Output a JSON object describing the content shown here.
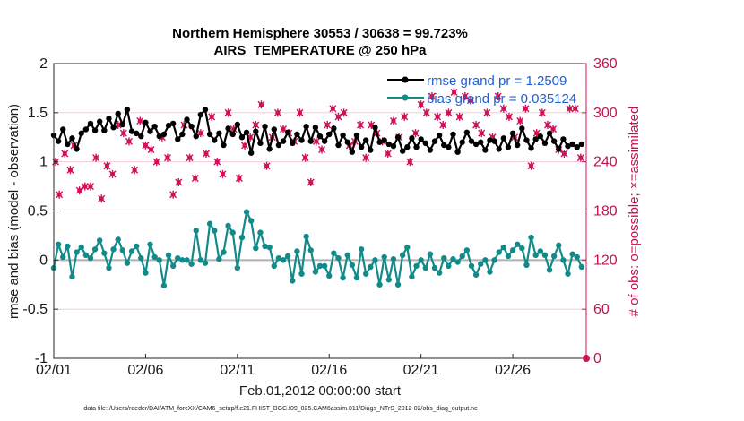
{
  "chart_data": {
    "type": "line",
    "title_line1": "Northern Hemisphere 30553 / 30638 = 99.723%",
    "title_line2": "AIRS_TEMPERATURE @ 250 hPa",
    "xlabel": "Feb.01,2012 00:00:00 start",
    "ylabel_left": "rmse and bias (model - observation)",
    "ylabel_right": "# of obs: o=possible; ×=assimilated",
    "footer": "data file: /Users/raeder/DAI/ATM_forcXX/CAM6_setup/f.e21.FHIST_BGC.f09_025.CAM6assim.011/Diags_NTrS_2012-02/obs_diag_output.nc",
    "x_tick_labels": [
      "02/01",
      "02/06",
      "02/11",
      "02/16",
      "02/21",
      "02/26"
    ],
    "x_tick_days": [
      1,
      6,
      11,
      16,
      21,
      26
    ],
    "xlim": [
      1,
      30
    ],
    "ylim_left": [
      -1,
      2
    ],
    "yticks_left": [
      "-1",
      "-0.5",
      "0",
      "0.5",
      "1",
      "1.5",
      "2"
    ],
    "yticks_left_values": [
      -1,
      -0.5,
      0,
      0.5,
      1,
      1.5,
      2
    ],
    "ylim_right": [
      0,
      360
    ],
    "yticks_right": [
      "0",
      "60",
      "120",
      "180",
      "240",
      "300",
      "360"
    ],
    "yticks_right_values": [
      0,
      60,
      120,
      180,
      240,
      300,
      360
    ],
    "legend": [
      {
        "name": "rmse grand pr = 1.2509",
        "color": "#000000"
      },
      {
        "name": "bias grand pr = 0.035124",
        "color": "#138a8a"
      }
    ],
    "colors": {
      "rmse": "#000000",
      "bias": "#138a8a",
      "obs": "#d0105a",
      "zero": "#b0b0b0",
      "grid": "#f2c4d4"
    },
    "x": [
      1.0,
      1.25,
      1.5,
      1.75,
      2.0,
      2.25,
      2.5,
      2.75,
      3.0,
      3.25,
      3.5,
      3.75,
      4.0,
      4.25,
      4.5,
      4.75,
      5.0,
      5.25,
      5.5,
      5.75,
      6.0,
      6.25,
      6.5,
      6.75,
      7.0,
      7.25,
      7.5,
      7.75,
      8.0,
      8.25,
      8.5,
      8.75,
      9.0,
      9.25,
      9.5,
      9.75,
      10.0,
      10.25,
      10.5,
      10.75,
      11.0,
      11.25,
      11.5,
      11.75,
      12.0,
      12.25,
      12.5,
      12.75,
      13.0,
      13.25,
      13.5,
      13.75,
      14.0,
      14.25,
      14.5,
      14.75,
      15.0,
      15.25,
      15.5,
      15.75,
      16.0,
      16.25,
      16.5,
      16.75,
      17.0,
      17.25,
      17.5,
      17.75,
      18.0,
      18.25,
      18.5,
      18.75,
      19.0,
      19.25,
      19.5,
      19.75,
      20.0,
      20.25,
      20.5,
      20.75,
      21.0,
      21.25,
      21.5,
      21.75,
      22.0,
      22.25,
      22.5,
      22.75,
      23.0,
      23.25,
      23.5,
      23.75,
      24.0,
      24.25,
      24.5,
      24.75,
      25.0,
      25.25,
      25.5,
      25.75,
      26.0,
      26.25,
      26.5,
      26.75,
      27.0,
      27.25,
      27.5,
      27.75,
      28.0,
      28.25,
      28.5,
      28.75,
      29.0,
      29.25,
      29.5,
      29.75
    ],
    "series": [
      {
        "name": "rmse",
        "values": [
          1.27,
          1.21,
          1.33,
          1.18,
          1.24,
          1.13,
          1.29,
          1.33,
          1.39,
          1.32,
          1.41,
          1.32,
          1.44,
          1.35,
          1.49,
          1.38,
          1.53,
          1.31,
          1.29,
          1.26,
          1.4,
          1.31,
          1.36,
          1.26,
          1.28,
          1.37,
          1.39,
          1.23,
          1.28,
          1.43,
          1.36,
          1.26,
          1.48,
          1.53,
          1.28,
          1.22,
          1.29,
          1.17,
          1.34,
          1.28,
          1.38,
          1.25,
          1.3,
          1.09,
          1.31,
          1.19,
          1.36,
          1.13,
          1.33,
          1.17,
          1.21,
          1.3,
          1.19,
          1.28,
          1.22,
          1.36,
          1.21,
          1.35,
          1.26,
          1.21,
          1.28,
          1.34,
          1.17,
          1.27,
          1.2,
          1.1,
          1.27,
          1.15,
          1.22,
          1.12,
          1.35,
          1.2,
          1.22,
          1.18,
          1.16,
          1.25,
          1.11,
          1.15,
          1.24,
          1.15,
          1.23,
          1.19,
          1.12,
          1.21,
          1.27,
          1.17,
          1.15,
          1.28,
          1.1,
          1.2,
          1.3,
          1.21,
          1.18,
          1.2,
          1.12,
          1.22,
          1.21,
          1.13,
          1.24,
          1.15,
          1.29,
          1.17,
          1.34,
          1.22,
          1.14,
          1.23,
          1.26,
          1.19,
          1.29,
          1.21,
          1.13,
          1.23,
          1.16,
          1.18,
          1.15,
          1.18
        ]
      },
      {
        "name": "bias",
        "values": [
          -0.08,
          0.16,
          0.03,
          0.14,
          -0.17,
          0.08,
          0.13,
          0.05,
          0.02,
          0.11,
          0.2,
          0.07,
          -0.08,
          0.11,
          0.21,
          0.1,
          -0.03,
          0.09,
          0.14,
          0.02,
          -0.13,
          0.16,
          0.03,
          0.0,
          -0.26,
          0.05,
          -0.06,
          0.02,
          0.0,
          0.0,
          -0.04,
          0.3,
          0.0,
          -0.03,
          0.37,
          0.3,
          0.01,
          0.08,
          0.35,
          0.28,
          -0.08,
          0.23,
          0.49,
          0.4,
          0.12,
          0.28,
          0.14,
          0.13,
          -0.06,
          0.02,
          0.0,
          0.04,
          -0.21,
          0.09,
          -0.14,
          0.24,
          0.1,
          -0.12,
          -0.06,
          -0.06,
          -0.16,
          0.07,
          0.02,
          -0.18,
          0.05,
          -0.05,
          -0.18,
          0.11,
          -0.14,
          -0.07,
          0.0,
          -0.25,
          0.03,
          -0.2,
          0.01,
          -0.25,
          0.05,
          0.13,
          -0.17,
          -0.06,
          0.0,
          -0.08,
          0.06,
          -0.08,
          -0.13,
          0.02,
          -0.06,
          0.01,
          -0.02,
          0.04,
          0.1,
          -0.06,
          -0.15,
          -0.04,
          0.0,
          -0.12,
          0.0,
          0.08,
          0.13,
          0.04,
          0.1,
          0.16,
          0.12,
          -0.05,
          0.23,
          0.05,
          0.09,
          0.05,
          -0.1,
          0.04,
          0.15,
          0.0,
          -0.14,
          0.06,
          0.03,
          -0.07
        ]
      }
    ],
    "obs_assimilated": {
      "x": [
        1.1,
        1.3,
        1.6,
        1.9,
        2.1,
        2.4,
        2.7,
        3.0,
        3.3,
        3.6,
        3.9,
        4.2,
        4.5,
        4.8,
        5.1,
        5.4,
        5.7,
        6.0,
        6.3,
        6.6,
        6.9,
        7.2,
        7.5,
        7.8,
        8.1,
        8.4,
        8.7,
        9.0,
        9.3,
        9.6,
        9.9,
        10.2,
        10.5,
        10.8,
        11.1,
        11.4,
        11.7,
        12.0,
        12.3,
        12.6,
        12.9,
        13.2,
        13.5,
        13.8,
        14.1,
        14.4,
        14.7,
        15.0,
        15.3,
        15.6,
        15.9,
        16.2,
        16.5,
        16.8,
        17.1,
        17.4,
        17.7,
        18.0,
        18.3,
        18.6,
        18.9,
        19.2,
        19.5,
        19.8,
        20.1,
        20.4,
        20.7,
        21.0,
        21.3,
        21.6,
        21.9,
        22.2,
        22.5,
        22.8,
        23.1,
        23.4,
        23.7,
        24.0,
        24.3,
        24.6,
        24.9,
        25.2,
        25.5,
        25.8,
        26.1,
        26.4,
        26.7,
        27.0,
        27.3,
        27.6,
        27.9,
        28.2,
        28.5,
        28.8,
        29.1,
        29.4,
        29.7
      ],
      "y": [
        240,
        200,
        250,
        230,
        260,
        205,
        210,
        210,
        245,
        195,
        235,
        225,
        285,
        275,
        265,
        230,
        290,
        260,
        255,
        240,
        270,
        245,
        200,
        215,
        285,
        245,
        220,
        275,
        250,
        295,
        240,
        225,
        300,
        280,
        220,
        260,
        270,
        285,
        310,
        235,
        270,
        300,
        280,
        275,
        265,
        300,
        245,
        215,
        265,
        255,
        285,
        305,
        295,
        300,
        260,
        265,
        285,
        245,
        285,
        275,
        265,
        250,
        290,
        270,
        295,
        240,
        275,
        310,
        300,
        320,
        295,
        285,
        300,
        325,
        295,
        320,
        315,
        285,
        275,
        300,
        270,
        320,
        305,
        295,
        270,
        290,
        305,
        235,
        275,
        300,
        285,
        280,
        255,
        250,
        305,
        305,
        245
      ]
    }
  }
}
